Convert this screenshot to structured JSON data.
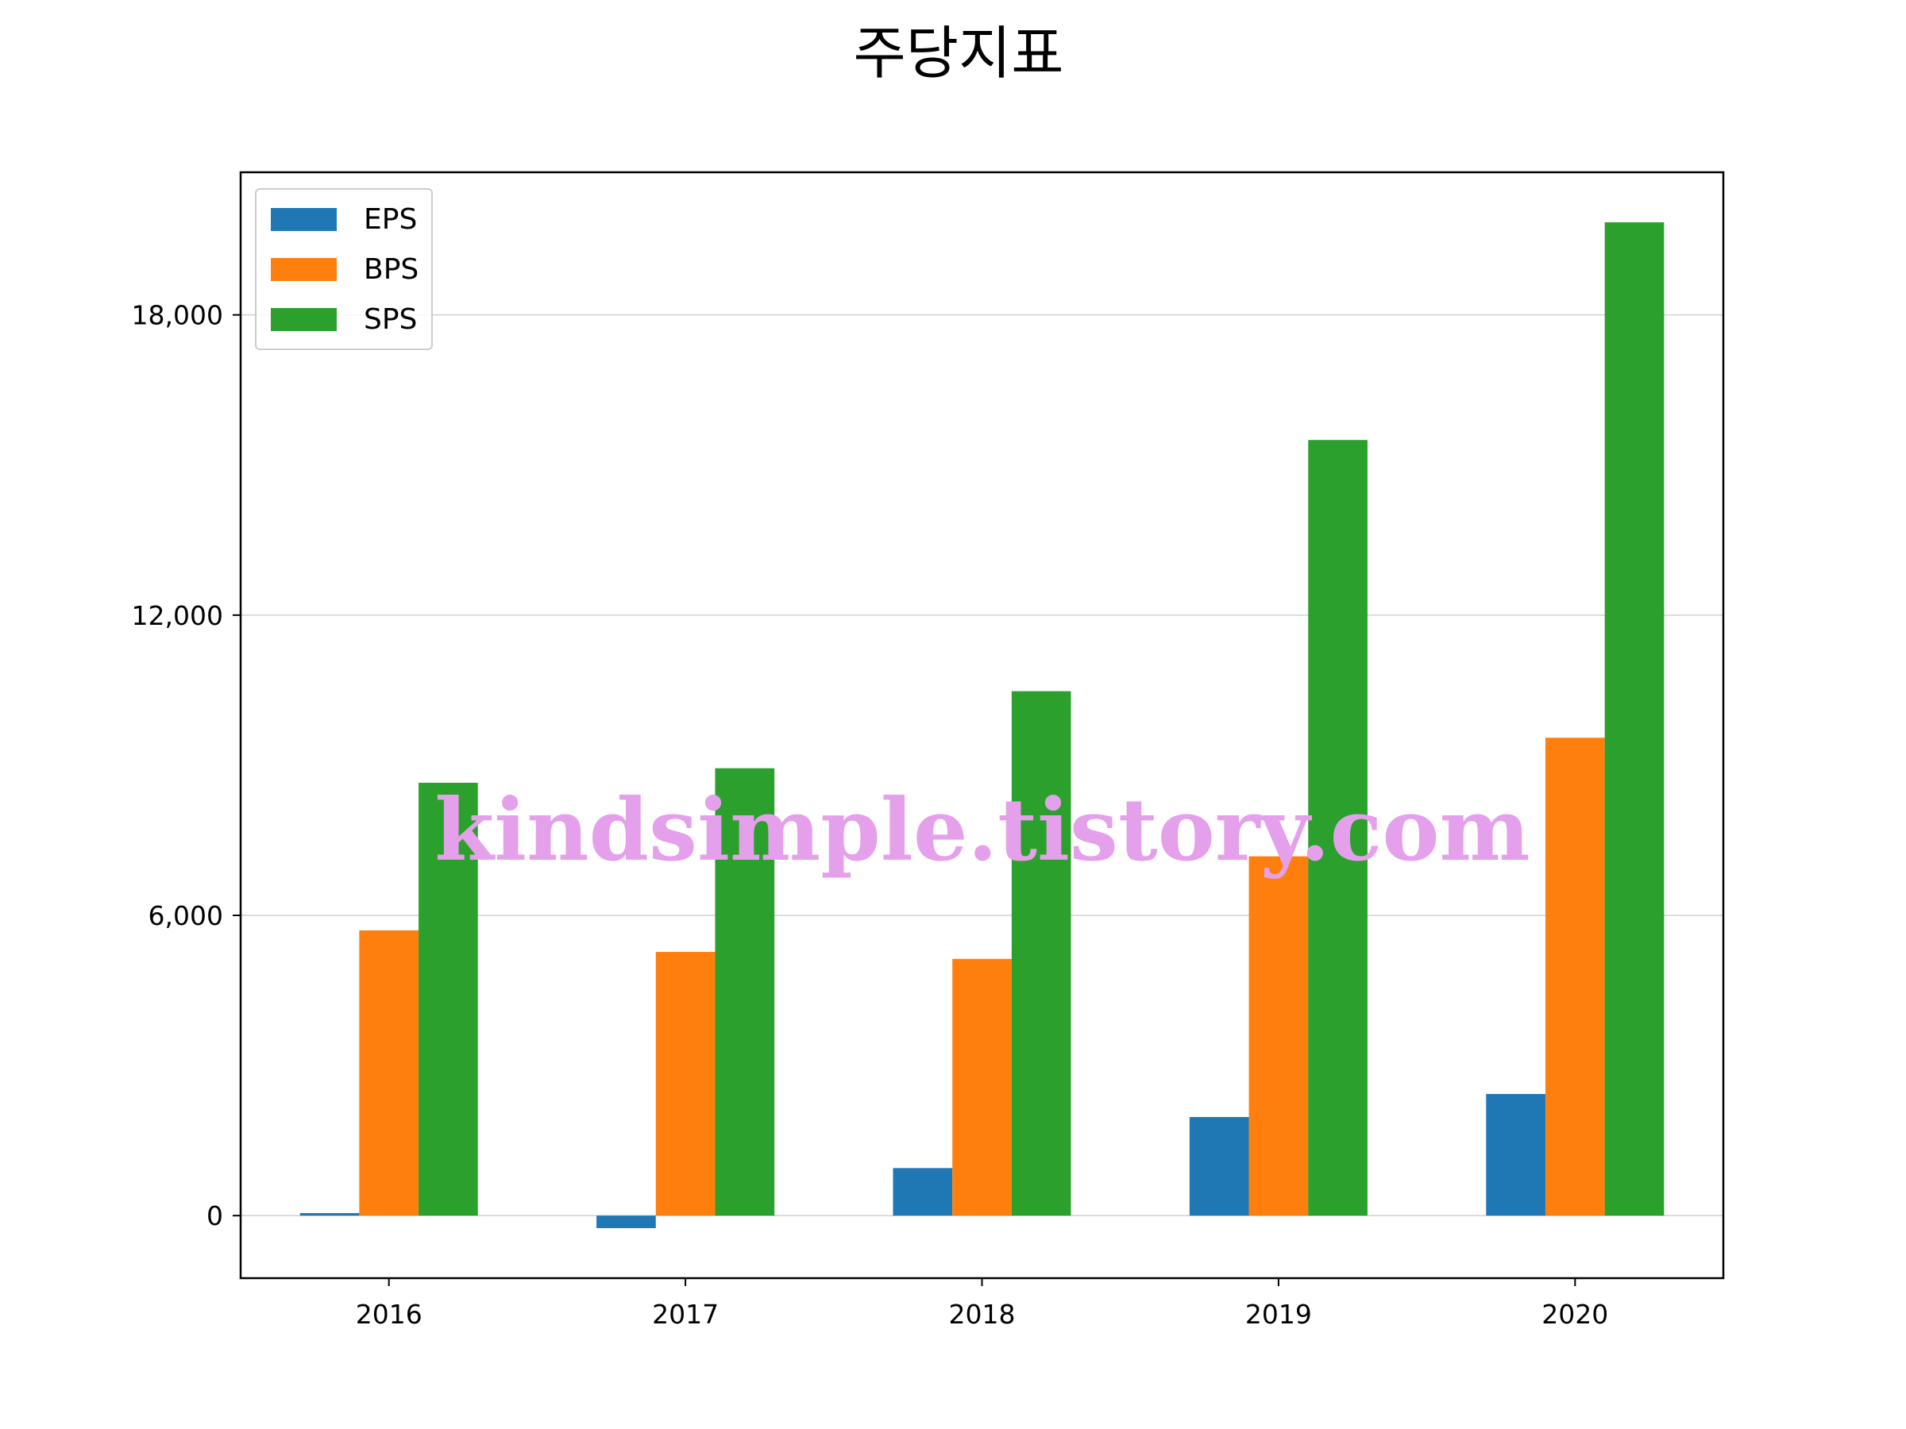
{
  "chart_data": {
    "type": "bar",
    "title": "주당지표",
    "categories": [
      "2016",
      "2017",
      "2018",
      "2019",
      "2020"
    ],
    "series": [
      {
        "name": "EPS",
        "color": "#1f77b4",
        "values": [
          50,
          -250,
          950,
          1970,
          2430
        ]
      },
      {
        "name": "BPS",
        "color": "#ff7f0e",
        "values": [
          5700,
          5270,
          5130,
          7180,
          9550
        ]
      },
      {
        "name": "SPS",
        "color": "#2ca02c",
        "values": [
          8650,
          8940,
          10480,
          15500,
          19850
        ]
      }
    ],
    "ylim": [
      -1250,
      20850
    ],
    "yticks": [
      0,
      6000,
      12000,
      18000
    ],
    "ytick_labels": [
      "0",
      "6,000",
      "12,000",
      "18,000"
    ],
    "xlabel": "",
    "ylabel": "",
    "grid": "y",
    "legend_position": "upper-left"
  },
  "watermark": "kindsimple.tistory.com"
}
